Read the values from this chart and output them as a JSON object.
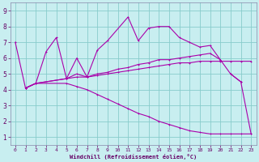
{
  "bg_color": "#c8eef0",
  "line_color": "#aa00aa",
  "grid_color": "#88cccc",
  "xlabel": "Windchill (Refroidissement éolien,°C)",
  "xlabel_color": "#660066",
  "tick_color": "#660066",
  "spine_color": "#8888aa",
  "xlim": [
    -0.5,
    23.5
  ],
  "ylim": [
    0.5,
    9.5
  ],
  "xticks": [
    0,
    1,
    2,
    3,
    4,
    5,
    6,
    7,
    8,
    9,
    10,
    11,
    12,
    13,
    14,
    15,
    16,
    17,
    18,
    19,
    20,
    21,
    22,
    23
  ],
  "yticks": [
    1,
    2,
    3,
    4,
    5,
    6,
    7,
    8,
    9
  ],
  "line1_x": [
    0,
    1,
    2,
    3,
    4,
    5,
    6,
    7,
    8,
    9,
    11,
    12,
    13,
    14,
    15,
    16,
    17,
    18,
    19,
    20,
    21,
    22
  ],
  "line1_y": [
    7.0,
    4.1,
    4.4,
    6.4,
    7.3,
    4.7,
    6.0,
    4.8,
    6.5,
    7.1,
    8.6,
    7.1,
    7.9,
    8.0,
    8.0,
    7.3,
    7.0,
    6.7,
    6.8,
    5.9,
    5.0,
    4.5
  ],
  "line2_x": [
    1,
    2,
    5,
    6,
    7,
    8,
    9,
    10,
    11,
    12,
    13,
    14,
    15,
    16,
    17,
    18,
    19,
    20
  ],
  "line2_y": [
    4.1,
    4.4,
    4.7,
    5.0,
    4.8,
    5.0,
    5.1,
    5.3,
    5.4,
    5.6,
    5.7,
    5.9,
    5.9,
    6.0,
    6.1,
    6.2,
    6.3,
    5.9
  ],
  "line3_x": [
    1,
    2,
    5,
    6,
    7,
    8,
    9,
    10,
    11,
    12,
    13,
    14,
    15,
    16,
    17,
    18,
    19,
    20,
    21,
    22,
    23
  ],
  "line3_y": [
    4.1,
    4.4,
    4.7,
    4.8,
    4.8,
    4.9,
    5.0,
    5.1,
    5.2,
    5.3,
    5.4,
    5.5,
    5.6,
    5.7,
    5.7,
    5.8,
    5.8,
    5.8,
    5.8,
    5.8,
    5.8
  ],
  "line4_x": [
    1,
    2,
    5,
    6,
    7,
    8,
    9,
    10,
    11,
    12,
    13,
    14,
    15,
    16,
    17,
    18,
    19,
    20,
    21,
    22,
    23
  ],
  "line4_y": [
    4.1,
    4.4,
    4.4,
    4.2,
    4.0,
    3.7,
    3.4,
    3.1,
    2.8,
    2.5,
    2.3,
    2.0,
    1.8,
    1.6,
    1.4,
    1.3,
    1.2,
    1.2,
    1.2,
    1.2,
    1.2
  ],
  "line5_x": [
    21,
    22,
    23
  ],
  "line5_y": [
    5.0,
    4.5,
    1.2
  ]
}
